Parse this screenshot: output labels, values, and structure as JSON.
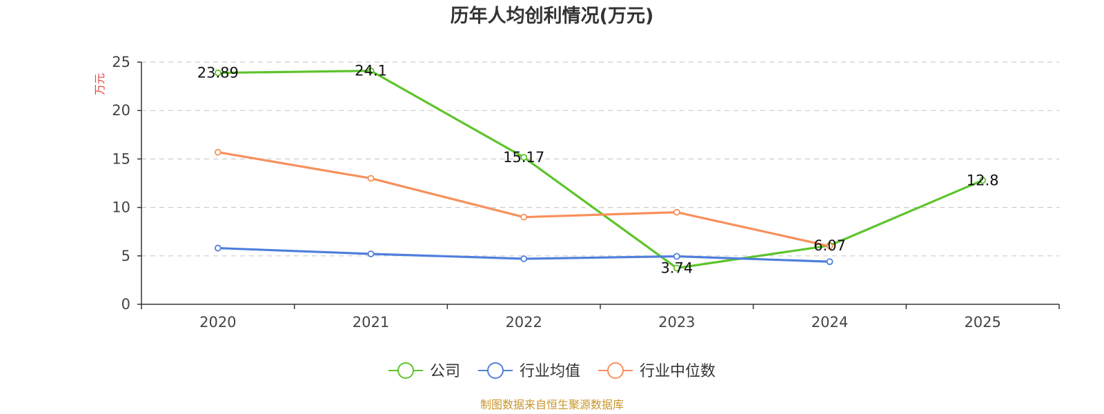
{
  "chart_data": {
    "type": "line",
    "title": "历年人均创利情况(万元)",
    "ylabel": "万元",
    "xlabel": "",
    "categories": [
      "2020",
      "2021",
      "2022",
      "2023",
      "2024",
      "2025"
    ],
    "ylim": [
      0,
      25
    ],
    "yticks": [
      0,
      5,
      10,
      15,
      20,
      25
    ],
    "grid": true,
    "legend_position": "bottom",
    "series": [
      {
        "name": "公司",
        "color": "#5cc42a",
        "values": [
          23.89,
          24.1,
          15.17,
          3.74,
          6.07,
          12.8
        ],
        "labels": [
          "23.89",
          "24.1",
          "15.17",
          "3.74",
          "6.07",
          "12.8"
        ],
        "show_labels": true
      },
      {
        "name": "行业均值",
        "color": "#4f7fdc",
        "values": [
          5.8,
          5.2,
          4.7,
          4.95,
          4.4,
          null
        ],
        "show_labels": false
      },
      {
        "name": "行业中位数",
        "color": "#f7905a",
        "values": [
          15.7,
          13.0,
          9.0,
          9.5,
          6.0,
          null
        ],
        "show_labels": false
      }
    ]
  },
  "footer": {
    "source": "制图数据来自恒生聚源数据库"
  }
}
